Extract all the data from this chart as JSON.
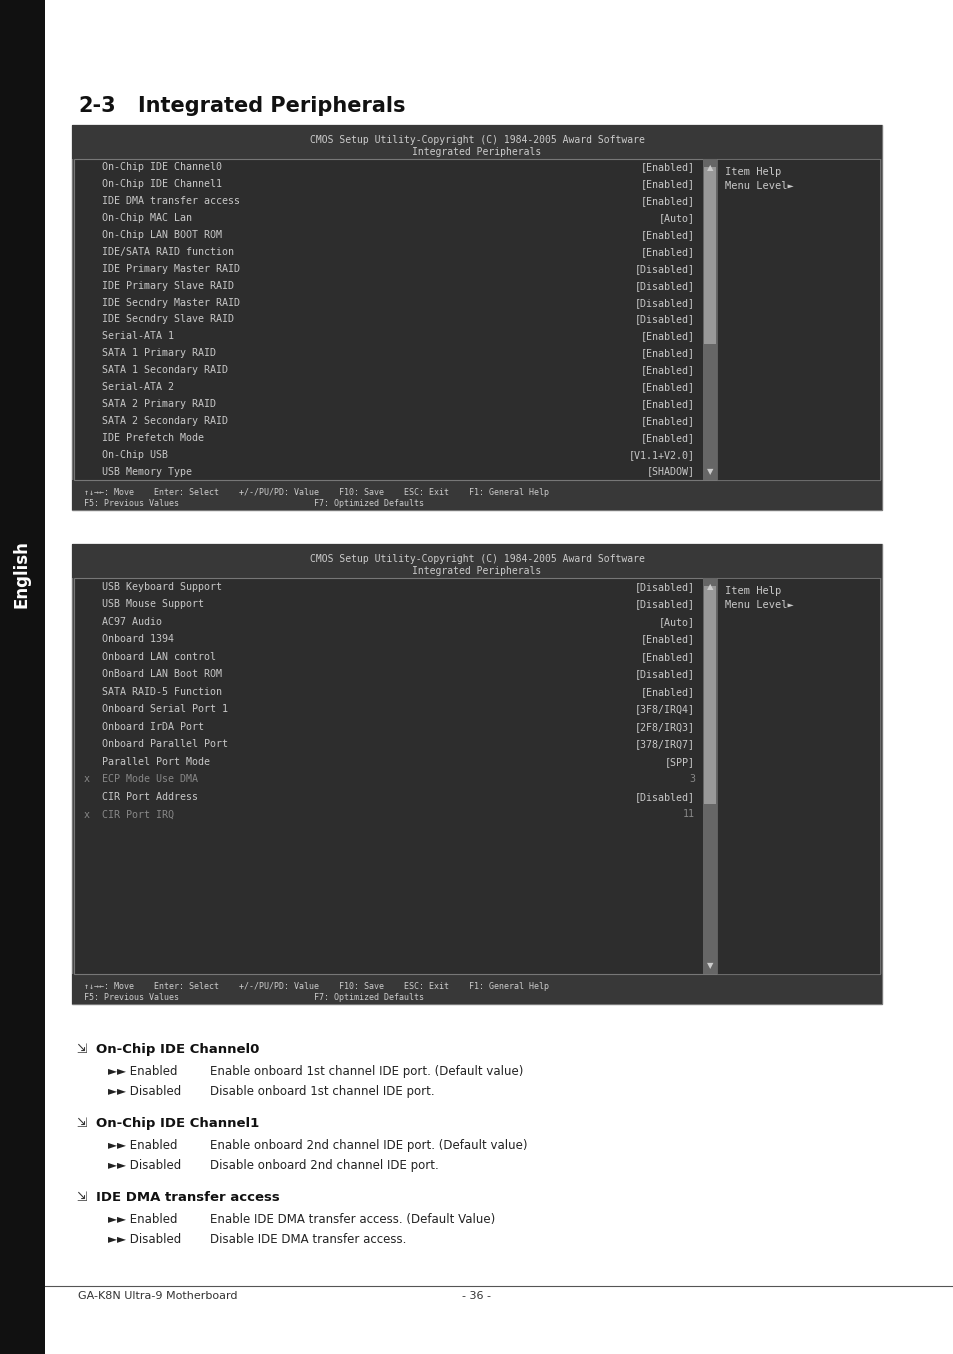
{
  "title": "2-3    Integrated Peripherals",
  "page_bg": "#ffffff",
  "sidebar_color": "#1a1a1a",
  "sidebar_text": "English",
  "bios_bg": "#3c3c3c",
  "bios_row_bg": "#2d2d2d",
  "bios_text_color": "#c8c8c8",
  "bios_disabled_color": "#888888",
  "bios_border_color": "#777777",
  "scrollbar_color": "#888888",
  "screen1_header1": "CMOS Setup Utility-Copyright (C) 1984-2005 Award Software",
  "screen1_header2": "Integrated Peripherals",
  "screen1_rows": [
    [
      "On-Chip IDE Channel0",
      "[Enabled]",
      false,
      false
    ],
    [
      "On-Chip IDE Channel1",
      "[Enabled]",
      false,
      false
    ],
    [
      "IDE DMA transfer access",
      "[Enabled]",
      false,
      false
    ],
    [
      "On-Chip MAC Lan",
      "[Auto]",
      false,
      false
    ],
    [
      "On-Chip LAN BOOT ROM",
      "[Enabled]",
      false,
      false
    ],
    [
      "IDE/SATA RAID function",
      "[Enabled]",
      false,
      false
    ],
    [
      "IDE Primary Master RAID",
      "[Disabled]",
      false,
      false
    ],
    [
      "IDE Primary Slave RAID",
      "[Disabled]",
      false,
      false
    ],
    [
      "IDE Secndry Master RAID",
      "[Disabled]",
      false,
      false
    ],
    [
      "IDE Secndry Slave RAID",
      "[Disabled]",
      false,
      false
    ],
    [
      "Serial-ATA 1",
      "[Enabled]",
      false,
      false
    ],
    [
      "SATA 1 Primary RAID",
      "[Enabled]",
      false,
      false
    ],
    [
      "SATA 1 Secondary RAID",
      "[Enabled]",
      false,
      false
    ],
    [
      "Serial-ATA 2",
      "[Enabled]",
      false,
      false
    ],
    [
      "SATA 2 Primary RAID",
      "[Enabled]",
      false,
      false
    ],
    [
      "SATA 2 Secondary RAID",
      "[Enabled]",
      false,
      false
    ],
    [
      "IDE Prefetch Mode",
      "[Enabled]",
      false,
      false
    ],
    [
      "On-Chip USB",
      "[V1.1+V2.0]",
      false,
      false
    ],
    [
      "USB Memory Type",
      "[SHADOW]",
      false,
      false
    ]
  ],
  "screen1_help": [
    "Item Help",
    "Menu Level►"
  ],
  "screen1_footer1": "↑↓→←: Move    Enter: Select    +/-/PU/PD: Value    F10: Save    ESC: Exit    F1: General Help",
  "screen1_footer2": "F5: Previous Values                           F7: Optimized Defaults",
  "screen2_header1": "CMOS Setup Utility-Copyright (C) 1984-2005 Award Software",
  "screen2_header2": "Integrated Peripherals",
  "screen2_rows": [
    [
      "USB Keyboard Support",
      "[Disabled]",
      false,
      false
    ],
    [
      "USB Mouse Support",
      "[Disabled]",
      false,
      false
    ],
    [
      "AC97 Audio",
      "[Auto]",
      false,
      false
    ],
    [
      "Onboard 1394",
      "[Enabled]",
      false,
      false
    ],
    [
      "Onboard LAN control",
      "[Enabled]",
      false,
      false
    ],
    [
      "OnBoard LAN Boot ROM",
      "[Disabled]",
      false,
      false
    ],
    [
      "SATA RAID-5 Function",
      "[Enabled]",
      false,
      false
    ],
    [
      "Onboard Serial Port 1",
      "[3F8/IRQ4]",
      false,
      false
    ],
    [
      "Onboard IrDA Port",
      "[2F8/IRQ3]",
      false,
      false
    ],
    [
      "Onboard Parallel Port",
      "[378/IRQ7]",
      false,
      false
    ],
    [
      "Parallel Port Mode",
      "[SPP]",
      false,
      false
    ],
    [
      "ECP Mode Use DMA",
      "3",
      true,
      true
    ],
    [
      "CIR Port Address",
      "[Disabled]",
      false,
      false
    ],
    [
      "CIR Port IRQ",
      "11",
      true,
      true
    ]
  ],
  "screen2_help": [
    "Item Help",
    "Menu Level►"
  ],
  "screen2_footer1": "↑↓→←: Move    Enter: Select    +/-/PU/PD: Value    F10: Save    ESC: Exit    F1: General Help",
  "screen2_footer2": "F5: Previous Values                           F7: Optimized Defaults",
  "bullet_sections": [
    {
      "title": "On-Chip IDE Channel0",
      "items": [
        [
          "►► Enabled",
          "Enable onboard 1st channel IDE port. (Default value)"
        ],
        [
          "►► Disabled",
          "Disable onboard 1st channel IDE port."
        ]
      ]
    },
    {
      "title": "On-Chip IDE Channel1",
      "items": [
        [
          "►► Enabled",
          "Enable onboard 2nd channel IDE port. (Default value)"
        ],
        [
          "►► Disabled",
          "Disable onboard 2nd channel IDE port."
        ]
      ]
    },
    {
      "title": "IDE DMA transfer access",
      "items": [
        [
          "►► Enabled",
          "Enable IDE DMA transfer access. (Default Value)"
        ],
        [
          "►► Disabled",
          "Disable IDE DMA transfer access."
        ]
      ]
    }
  ],
  "footer_left": "GA-K8N Ultra-9 Motherboard",
  "footer_center": "- 36 -"
}
